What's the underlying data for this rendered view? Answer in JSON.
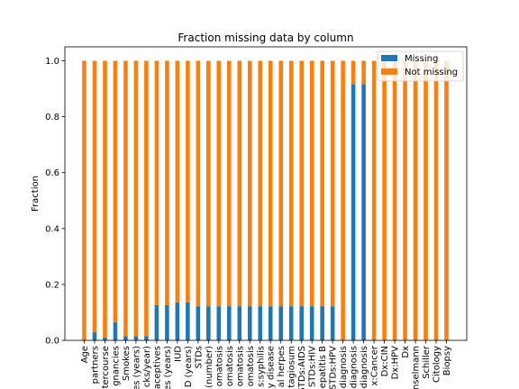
{
  "chart_data": {
    "type": "bar",
    "stacked": true,
    "title": "Fraction missing data by column",
    "xlabel": "",
    "ylabel": "Fraction",
    "ylim": [
      0,
      1.05
    ],
    "yticks": [
      "0.0",
      "0.2",
      "0.4",
      "0.6",
      "0.8",
      "1.0"
    ],
    "grid": false,
    "legend_position": "top-right",
    "categories": [
      "Age",
      "partners",
      "tercourse",
      "gnancies",
      "Smokes",
      "es (years)",
      "cks/year)",
      "aceptives",
      "es (years)",
      "IUD",
      "D (years)",
      "STDs",
      "(number)",
      "omatosis",
      "omatosis",
      "omatosis",
      "omatosis",
      "s:syphilis",
      "y disease",
      "al herpes",
      "tagiosum",
      "STDs:AIDS",
      "STDs:HIV",
      "epatitis B",
      "STDs:HPV",
      "diagnosis",
      "diagnosis",
      "diagnosis",
      "x:Cancer",
      "Dx:CIN",
      "Dx:HPV",
      "Dx",
      "nselmann",
      "Schiller",
      "Citology",
      "Biopsy"
    ],
    "series": [
      {
        "name": "Missing",
        "color": "#1f77b4",
        "values": [
          0.0,
          0.03,
          0.01,
          0.065,
          0.015,
          0.015,
          0.015,
          0.126,
          0.126,
          0.136,
          0.136,
          0.122,
          0.122,
          0.122,
          0.122,
          0.122,
          0.122,
          0.122,
          0.122,
          0.122,
          0.122,
          0.122,
          0.122,
          0.122,
          0.122,
          0.0,
          0.917,
          0.917,
          0.0,
          0.0,
          0.0,
          0.0,
          0.0,
          0.0,
          0.0,
          0.0
        ]
      },
      {
        "name": "Not missing",
        "color": "#ff7f0e",
        "values": [
          1.0,
          0.97,
          0.99,
          0.935,
          0.985,
          0.985,
          0.985,
          0.874,
          0.874,
          0.864,
          0.864,
          0.878,
          0.878,
          0.878,
          0.878,
          0.878,
          0.878,
          0.878,
          0.878,
          0.878,
          0.878,
          0.878,
          0.878,
          0.878,
          0.878,
          1.0,
          0.083,
          0.083,
          1.0,
          1.0,
          1.0,
          1.0,
          1.0,
          1.0,
          1.0,
          1.0
        ]
      }
    ]
  }
}
